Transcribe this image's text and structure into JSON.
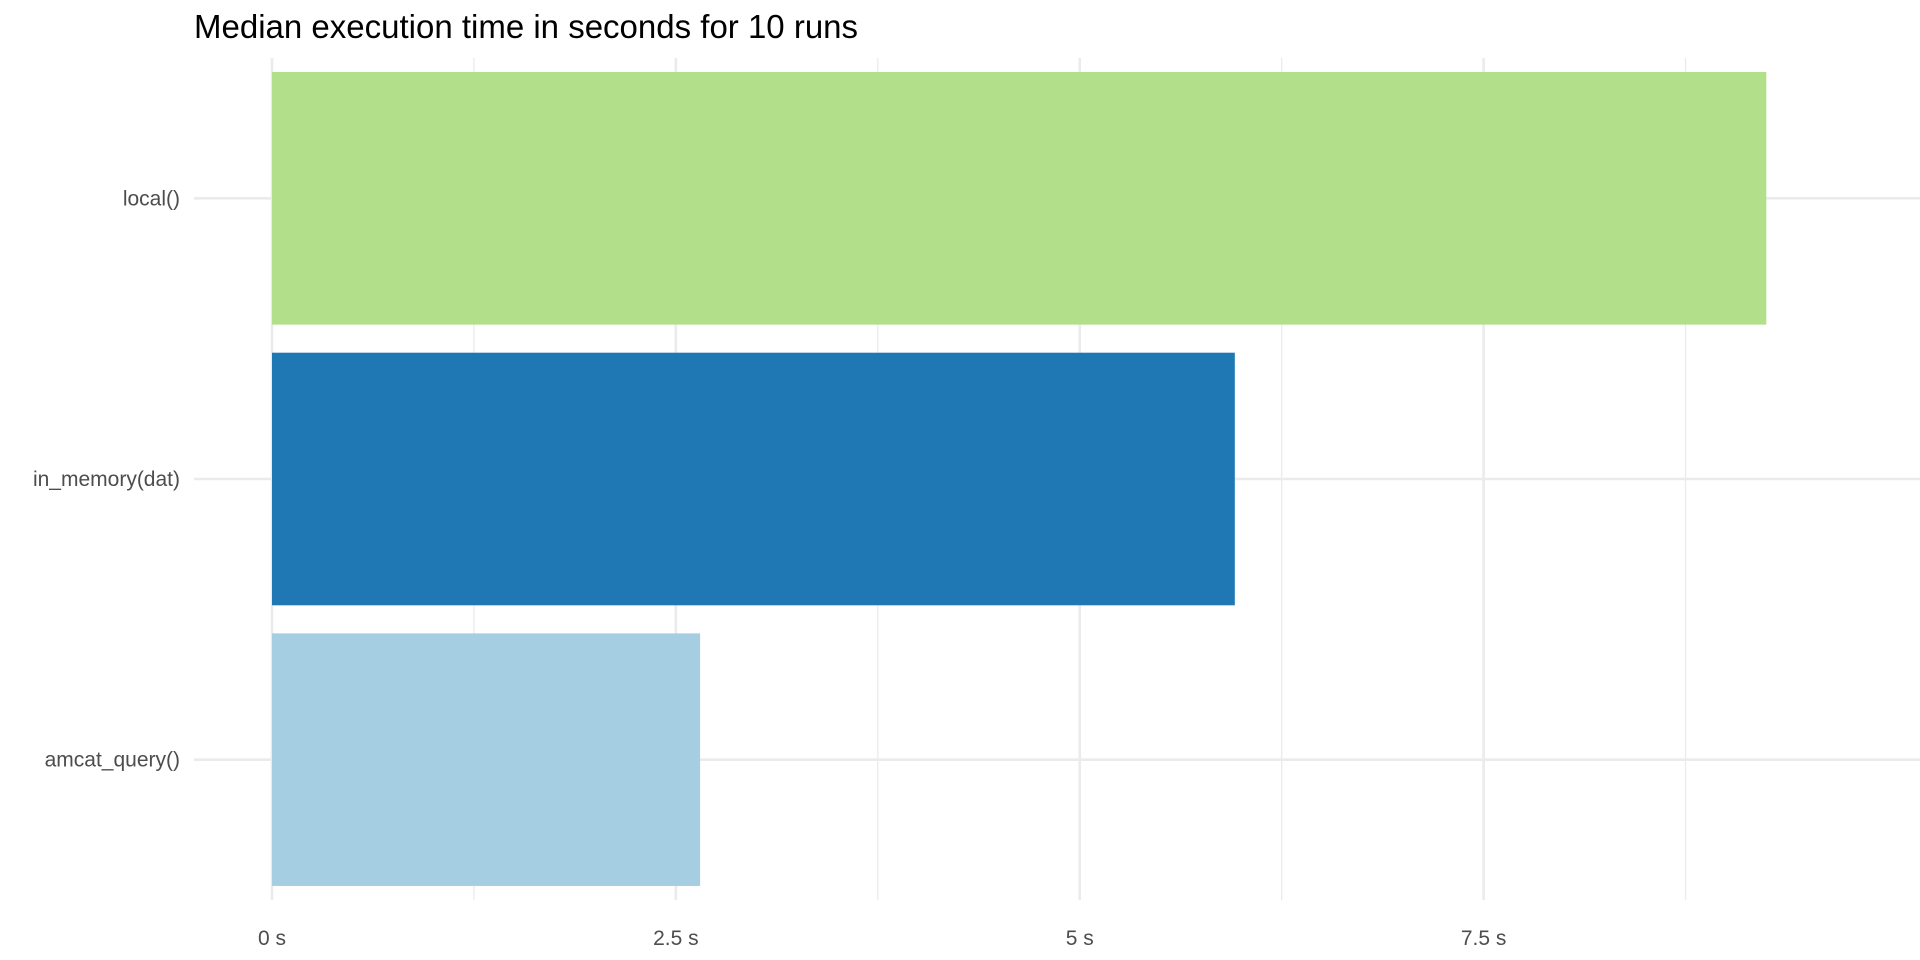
{
  "chart_data": {
    "type": "bar",
    "orientation": "horizontal",
    "title": "Median execution time in seconds for 10 runs",
    "xlabel": "",
    "ylabel": "",
    "categories": [
      "local()",
      "in_memory(dat)",
      "amcat_query()"
    ],
    "values": [
      9.25,
      5.96,
      2.65
    ],
    "unit": "s",
    "colors": [
      "#b2df8a",
      "#1f78b4",
      "#a6cee3"
    ],
    "xlim": [
      0,
      9.7
    ],
    "x_major_ticks": [
      0,
      2.5,
      5,
      7.5
    ],
    "x_tick_labels": [
      "0 s",
      "2.5 s",
      "5 s",
      "7.5 s"
    ],
    "x_minor_ticks": [
      1.25,
      3.75,
      6.25,
      8.75
    ],
    "grid": true,
    "legend": "none"
  }
}
